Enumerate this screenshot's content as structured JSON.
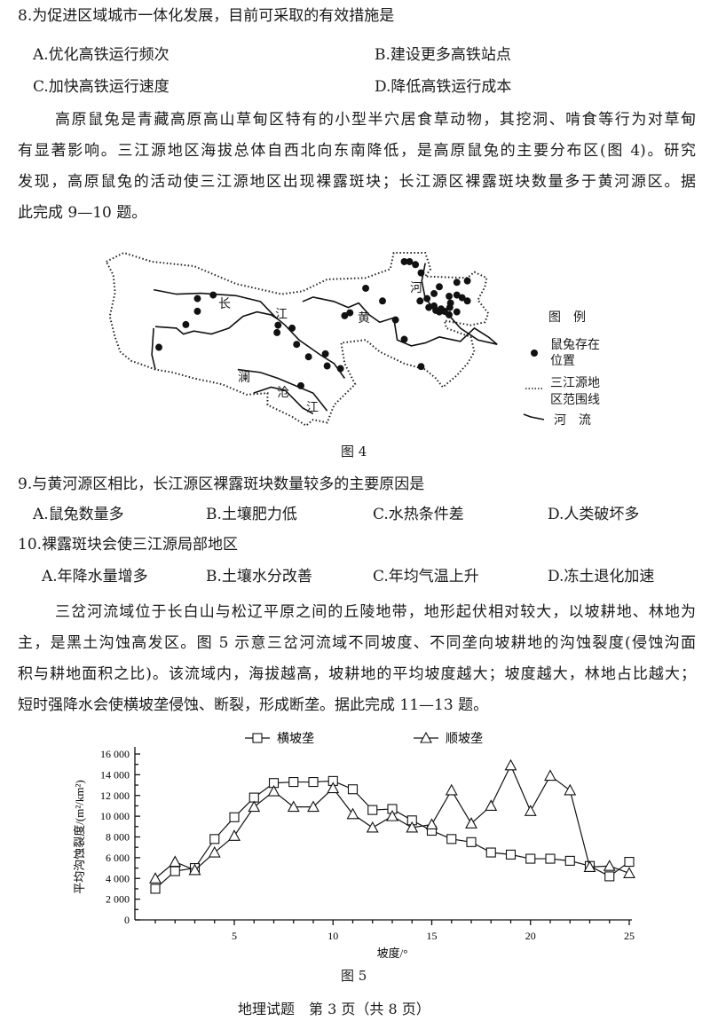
{
  "q8": {
    "stem": "8.为促进区域城市一体化发展，目前可采取的有效措施是",
    "options": [
      "A.优化高铁运行频次",
      "B.建设更多高铁站点",
      "C.加快高铁运行速度",
      "D.降低高铁运行成本"
    ]
  },
  "passage1": [
    "高原鼠兔是青藏高原高山草甸区特有的小型半穴居食草动物，其挖洞、啃食等行为对草甸",
    "有显著影响。三江源地区海拔总体自西北向东南降低，是高原鼠兔的主要分布区(图 4)。研究",
    "发现，高原鼠兔的活动使三江源地区出现裸露斑块；长江源区裸露斑块数量多于黄河源区。据",
    "此完成 9—10 题。"
  ],
  "figure4": {
    "caption": "图 4",
    "labels": {
      "chang": "长",
      "jiang1": "江",
      "huang": "黄",
      "he": "河",
      "lan": "澜",
      "cang": "沧",
      "jiang2": "江"
    },
    "legend": {
      "title": "图　例",
      "pika_line1": "鼠兔存在",
      "pika_line2": "位置",
      "boundary_line1": "三江源地",
      "boundary_line2": "区范围线",
      "river": "河　流"
    }
  },
  "q9": {
    "stem": "9.与黄河源区相比，长江源区裸露斑块数量较多的主要原因是",
    "options": [
      "A.鼠兔数量多",
      "B.土壤肥力低",
      "C.水热条件差",
      "D.人类破坏多"
    ]
  },
  "q10": {
    "stem": "10.裸露斑块会使三江源局部地区",
    "options": [
      "A.年降水量增多",
      "B.土壤水分改善",
      "C.年均气温上升",
      "D.冻土退化加速"
    ]
  },
  "passage2": [
    "三岔河流域位于长白山与松辽平原之间的丘陵地带，地形起伏相对较大，以坡耕地、林地为",
    "主，是黑土沟蚀高发区。图 5 示意三岔河流域不同坡度、不同垄向坡耕地的沟蚀裂度(侵蚀沟面",
    "积与耕地面积之比)。该流域内，海拔越高，坡耕地的平均坡度越大；坡度越大，林地占比越大；",
    "短时强降水会使横坡垄侵蚀、断裂，形成断垄。据此完成 11—13 题。"
  ],
  "chart_data": {
    "type": "line",
    "caption": "图 5",
    "xlabel": "坡度/°",
    "ylabel": "平均沟蚀裂度/(m²/km²)",
    "x": [
      1,
      2,
      3,
      4,
      5,
      6,
      7,
      8,
      9,
      10,
      11,
      12,
      13,
      14,
      15,
      16,
      17,
      18,
      19,
      20,
      21,
      22,
      23,
      24,
      25
    ],
    "xlim": [
      0,
      25
    ],
    "ylim": [
      0,
      16000
    ],
    "xticks": [
      "5",
      "10",
      "15",
      "20",
      "25"
    ],
    "yticks": [
      "0",
      "2 000",
      "4 000",
      "6 000",
      "8 000",
      "10 000",
      "12 000",
      "14 000",
      "16 000"
    ],
    "legend_position": "top",
    "grid": false,
    "series": [
      {
        "name": "横坡垄",
        "marker": "square",
        "values": [
          3000,
          4700,
          5000,
          7800,
          9900,
          11800,
          13200,
          13300,
          13300,
          13400,
          12600,
          10600,
          10700,
          9600,
          8600,
          7800,
          7500,
          6500,
          6300,
          5900,
          5900,
          5700,
          5200,
          4200,
          5600
        ]
      },
      {
        "name": "顺坡垄",
        "marker": "triangle",
        "values": [
          4000,
          5600,
          4800,
          6500,
          8100,
          10900,
          12400,
          10900,
          10900,
          12700,
          10200,
          8900,
          10000,
          8900,
          9200,
          12500,
          9300,
          11000,
          14900,
          10500,
          13900,
          12500,
          5100,
          5200,
          4500
        ]
      }
    ]
  },
  "footer": "地理试题　第 3 页（共 8 页）"
}
